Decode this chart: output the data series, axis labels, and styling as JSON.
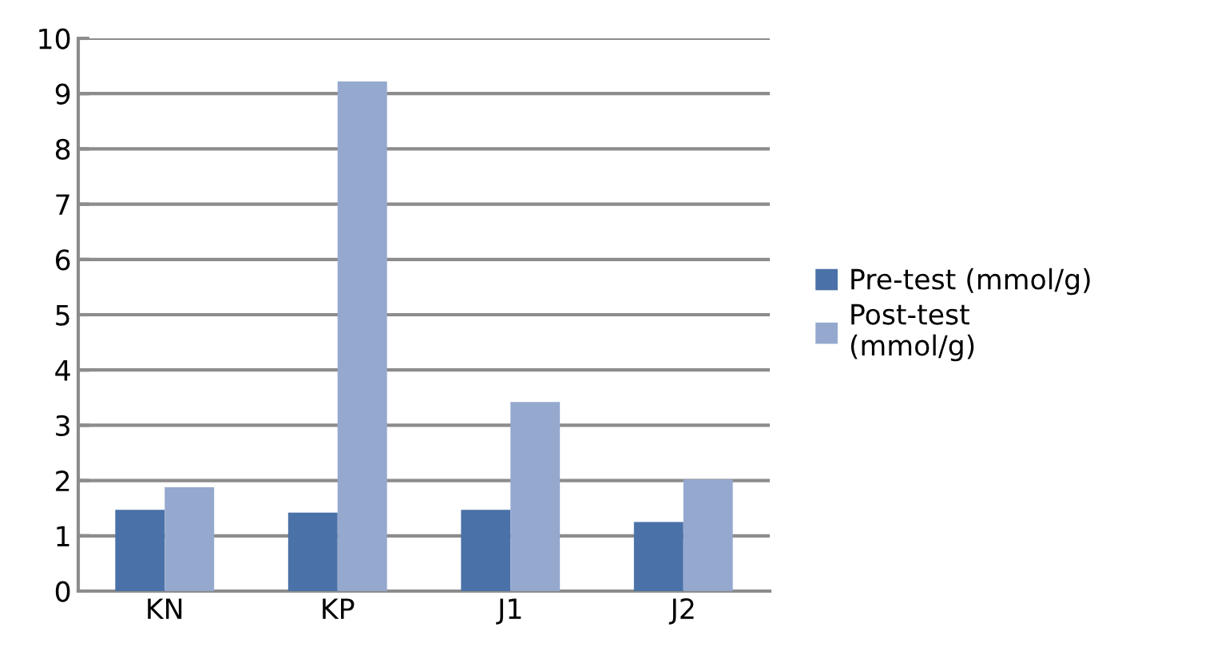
{
  "chart_data": {
    "type": "bar",
    "categories": [
      "KN",
      "KP",
      "J1",
      "J2"
    ],
    "series": [
      {
        "name": "Pre-test (mmol/g)",
        "color": "#4a72a8",
        "values": [
          1.47,
          1.42,
          1.47,
          1.25
        ]
      },
      {
        "name": "Post-test\n(mmol/g)",
        "color": "#95a9cf",
        "values": [
          1.88,
          9.22,
          3.42,
          2.02
        ]
      }
    ],
    "ylim": [
      0,
      10
    ],
    "yticks": [
      0,
      1,
      2,
      3,
      4,
      5,
      6,
      7,
      8,
      9,
      10
    ],
    "grid": "y",
    "legend": "right"
  }
}
